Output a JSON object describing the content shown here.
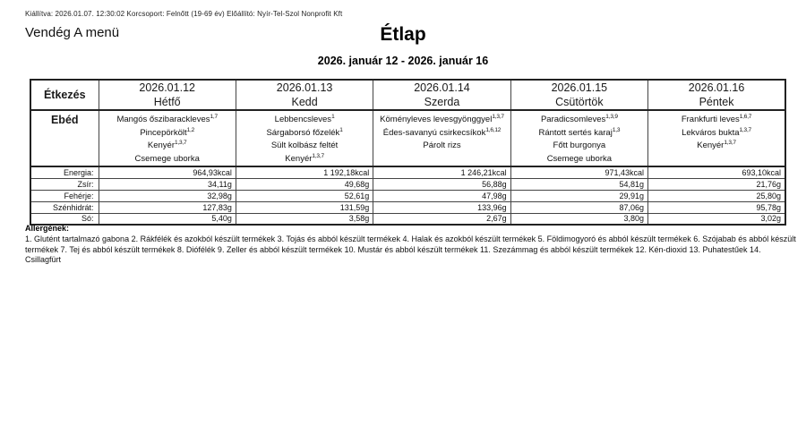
{
  "meta_line": "Kiállítva: 2026.01.07. 12:30:02 Korcsoport: Felnőtt (19-69 év) Előállító: Nyír-Tel-Szol Nonprofit Kft",
  "menu_label": "Vendég A menü",
  "title": "Étlap",
  "date_range": "2026. január 12 - 2026. január 16",
  "table": {
    "meal_header": "Étkezés",
    "meal_row_label": "Ebéd",
    "nutrition_labels": [
      "Energia:",
      "Zsír:",
      "Fehérje:",
      "Szénhidrát:",
      "Só:"
    ],
    "days": [
      {
        "date": "2026.01.12",
        "day": "Hétfő",
        "items": [
          {
            "name": "Mangós őszibarackleves",
            "sup": "1,7"
          },
          {
            "name": "Pincepörkölt",
            "sup": "1,2"
          },
          {
            "name": "Kenyér",
            "sup": "1,3,7"
          },
          {
            "name": "Csemege uborka",
            "sup": ""
          }
        ],
        "nutrition": [
          "964,93kcal",
          "34,11g",
          "32,98g",
          "127,83g",
          "5,40g"
        ]
      },
      {
        "date": "2026.01.13",
        "day": "Kedd",
        "items": [
          {
            "name": "Lebbencsleves",
            "sup": "1"
          },
          {
            "name": "Sárgaborsó főzelék",
            "sup": "1"
          },
          {
            "name": "Sült kolbász feltét",
            "sup": ""
          },
          {
            "name": "Kenyér",
            "sup": "1,3,7"
          }
        ],
        "nutrition": [
          "1 192,18kcal",
          "49,68g",
          "52,61g",
          "131,59g",
          "3,58g"
        ]
      },
      {
        "date": "2026.01.14",
        "day": "Szerda",
        "items": [
          {
            "name": "Köményleves levesgyönggyel",
            "sup": "1,3,7"
          },
          {
            "name": "Édes-savanyú csirkecsíkok",
            "sup": "1,6,12"
          },
          {
            "name": "Párolt rizs",
            "sup": ""
          }
        ],
        "nutrition": [
          "1 246,21kcal",
          "56,88g",
          "47,98g",
          "133,96g",
          "2,67g"
        ]
      },
      {
        "date": "2026.01.15",
        "day": "Csütörtök",
        "items": [
          {
            "name": "Paradicsomleves",
            "sup": "1,3,9"
          },
          {
            "name": "Rántott sertés karaj",
            "sup": "1,3"
          },
          {
            "name": "Főtt burgonya",
            "sup": ""
          },
          {
            "name": "Csemege uborka",
            "sup": ""
          }
        ],
        "nutrition": [
          "971,43kcal",
          "54,81g",
          "29,91g",
          "87,06g",
          "3,80g"
        ]
      },
      {
        "date": "2026.01.16",
        "day": "Péntek",
        "items": [
          {
            "name": "Frankfurti leves",
            "sup": "1,6,7"
          },
          {
            "name": "Lekváros bukta",
            "sup": "1,3,7"
          },
          {
            "name": "Kenyér",
            "sup": "1,3,7"
          }
        ],
        "nutrition": [
          "693,10kcal",
          "21,76g",
          "25,80g",
          "95,78g",
          "3,02g"
        ]
      }
    ]
  },
  "allergens": {
    "heading": "Allergének:",
    "text": "1. Glutént tartalmazó gabona 2. Rákfélék és azokból készült termékek 3. Tojás és abból készült termékek 4. Halak és azokból készült termékek 5. Földimogyoró és abból készült termékek 6. Szójabab és abból készült termékek 7. Tej és abból készült termékek 8. Diófélék 9. Zeller és abból készült termékek 10. Mustár és abból készült termékek 11. Szezámmag és abból készült termékek 12. Kén-dioxid 13. Puhatestűek 14. Csillagfürt"
  }
}
